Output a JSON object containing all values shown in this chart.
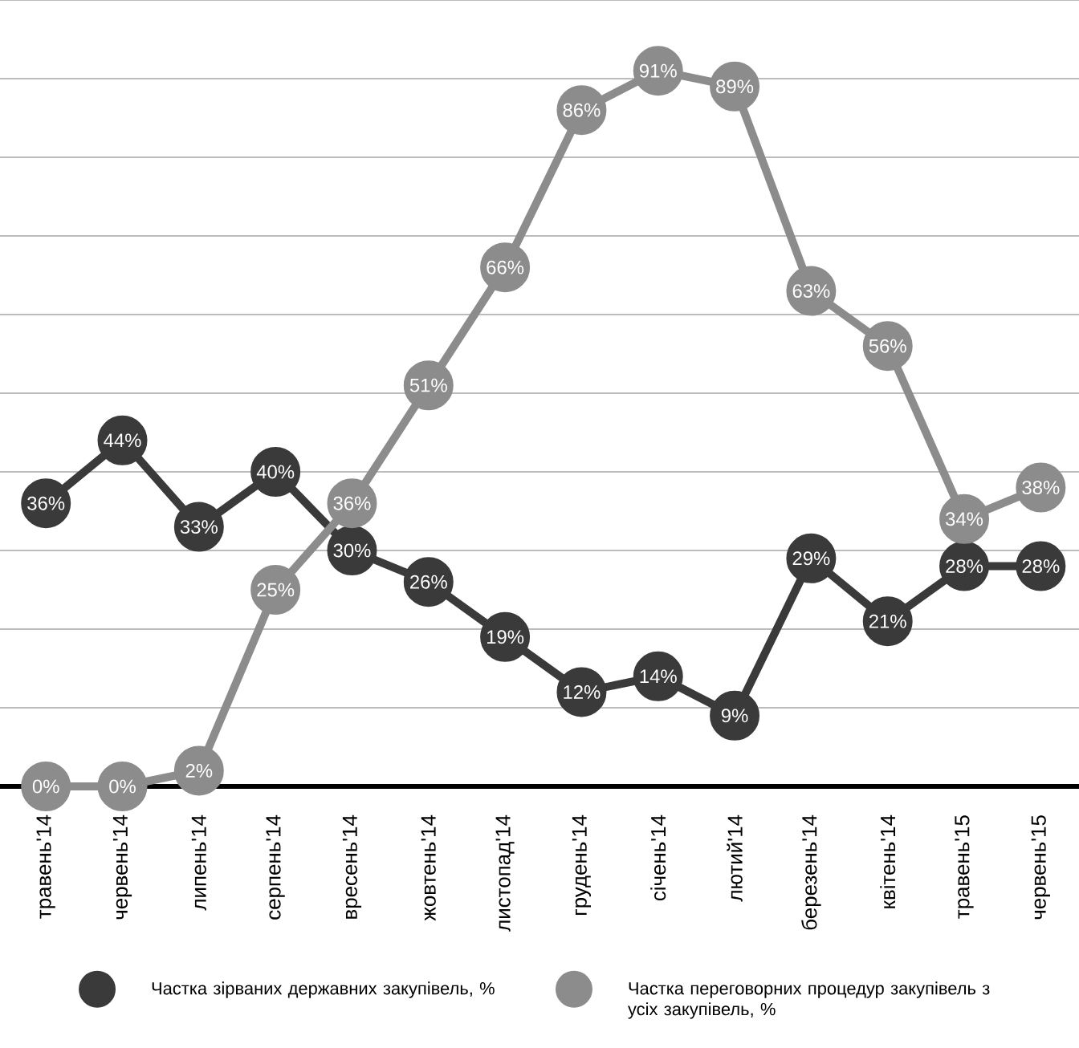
{
  "chart_data": {
    "type": "line",
    "categories": [
      "травень'14",
      "червень'14",
      "липень'14",
      "серпень'14",
      "вресень'14",
      "жовтень'14",
      "листопад'14",
      "грудень'14",
      "січень'14",
      "лютий'14",
      "березень'14",
      "квітень'14",
      "травень'15",
      "червень'15"
    ],
    "series": [
      {
        "name": "Частка зірваних державних закупівель, %",
        "color": "#3a3a3a",
        "values": [
          36,
          44,
          33,
          40,
          30,
          26,
          19,
          12,
          14,
          9,
          29,
          21,
          28,
          28
        ],
        "value_labels": [
          "36%",
          "44%",
          "33%",
          "40%",
          "30%",
          "26%",
          "19%",
          "12%",
          "14%",
          "9%",
          "29%",
          "21%",
          "28%",
          "28%"
        ]
      },
      {
        "name": "Частка переговорних процедур закупівель з усіх закупівель, %",
        "color": "#8c8c8c",
        "values": [
          0,
          0,
          2,
          25,
          36,
          51,
          66,
          86,
          91,
          89,
          63,
          56,
          34,
          38
        ],
        "value_labels": [
          "0%",
          "0%",
          "2%",
          "25%",
          "36%",
          "51%",
          "66%",
          "86%",
          "91%",
          "89%",
          "63%",
          "56%",
          "34%",
          "38%"
        ]
      }
    ],
    "ylim": [
      0,
      100
    ],
    "yticks": [
      {
        "value": 10,
        "label": null
      },
      {
        "value": 20,
        "label": null
      },
      {
        "value": 30,
        "label": null
      },
      {
        "value": 40,
        "label": null
      },
      {
        "value": 50,
        "label": null
      },
      {
        "value": 60,
        "label": null
      },
      {
        "value": 70,
        "label": null
      },
      {
        "value": 80,
        "label": null
      },
      {
        "value": 90,
        "label": null
      },
      {
        "value": 100,
        "label": null
      }
    ],
    "grid": "y",
    "legend": "bottom",
    "marker": "circle",
    "line_style": "solid",
    "tick_labels": "x"
  }
}
